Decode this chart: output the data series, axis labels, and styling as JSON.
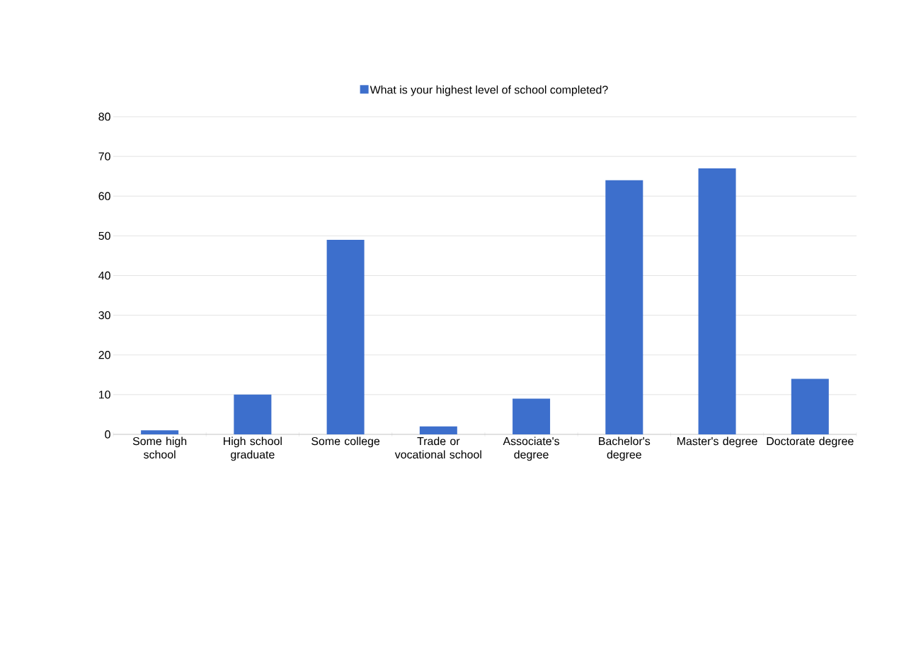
{
  "chart_data": {
    "type": "bar",
    "categories": [
      "Some high school",
      "High school graduate",
      "Some college",
      "Trade or vocational school",
      "Associate's degree",
      "Bachelor's degree",
      "Master's degree",
      "Doctorate degree"
    ],
    "series": [
      {
        "name": "What is your highest level of school completed?",
        "color": "#3d6fcc",
        "values": [
          1,
          10,
          49,
          2,
          9,
          64,
          67,
          14
        ]
      }
    ],
    "ylim": [
      0,
      80
    ],
    "yticks": [
      0,
      10,
      20,
      30,
      40,
      50,
      60,
      70,
      80
    ],
    "grid": "y",
    "legend": "top"
  }
}
